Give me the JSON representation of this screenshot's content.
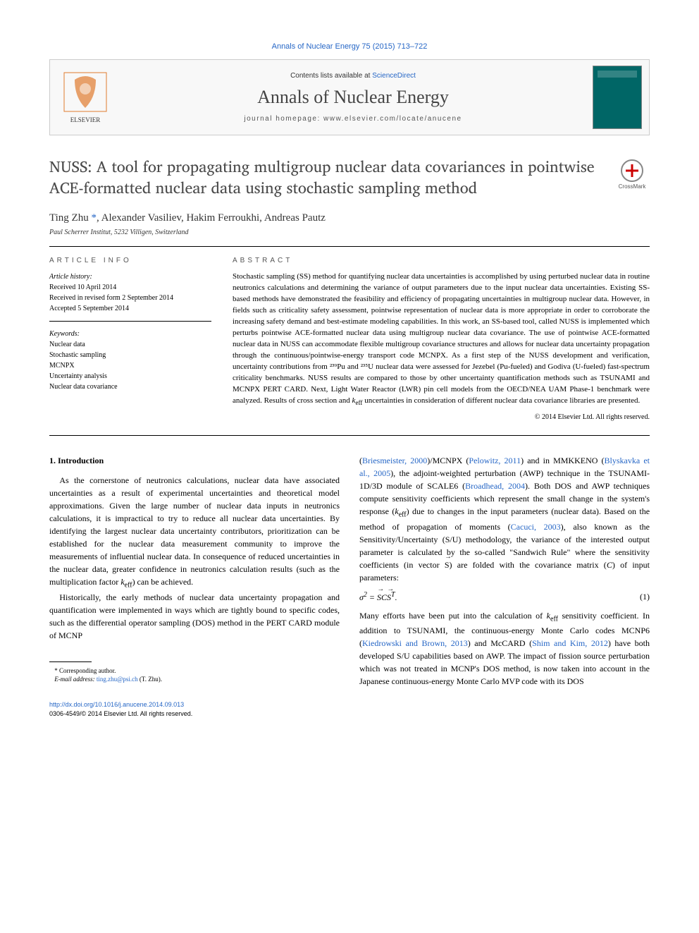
{
  "citation": "Annals of Nuclear Energy 75 (2015) 713–722",
  "header": {
    "contents_prefix": "Contents lists available at ",
    "contents_link": "ScienceDirect",
    "journal_name": "Annals of Nuclear Energy",
    "homepage_label": "journal homepage: ",
    "homepage_url": "www.elsevier.com/locate/anucene"
  },
  "article": {
    "title": "NUSS: A tool for propagating multigroup nuclear data covariances in pointwise ACE-formatted nuclear data using stochastic sampling method",
    "crossmark_label": "CrossMark",
    "authors_html": "Ting Zhu <span class='corr'>*</span>, Alexander Vasiliev, Hakim Ferroukhi, Andreas Pautz",
    "affiliation": "Paul Scherrer Institut, 5232 Villigen, Switzerland"
  },
  "info": {
    "heading": "article info",
    "history_label": "Article history:",
    "received": "Received 10 April 2014",
    "revised": "Received in revised form 2 September 2014",
    "accepted": "Accepted 5 September 2014",
    "keywords_label": "Keywords:",
    "keywords": [
      "Nuclear data",
      "Stochastic sampling",
      "MCNPX",
      "Uncertainty analysis",
      "Nuclear data covariance"
    ]
  },
  "abstract": {
    "heading": "abstract",
    "text": "Stochastic sampling (SS) method for quantifying nuclear data uncertainties is accomplished by using perturbed nuclear data in routine neutronics calculations and determining the variance of output parameters due to the input nuclear data uncertainties. Existing SS-based methods have demonstrated the feasibility and efficiency of propagating uncertainties in multigroup nuclear data. However, in fields such as criticality safety assessment, pointwise representation of nuclear data is more appropriate in order to corroborate the increasing safety demand and best-estimate modeling capabilities. In this work, an SS-based tool, called NUSS is implemented which perturbs pointwise ACE-formatted nuclear data using multigroup nuclear data covariance. The use of pointwise ACE-formatted nuclear data in NUSS can accommodate flexible multigroup covariance structures and allows for nuclear data uncertainty propagation through the continuous/pointwise-energy transport code MCNPX. As a first step of the NUSS development and verification, uncertainty contributions from ²³⁹Pu and ²³⁵U nuclear data were assessed for Jezebel (Pu-fueled) and Godiva (U-fueled) fast-spectrum criticality benchmarks. NUSS results are compared to those by other uncertainty quantification methods such as TSUNAMI and MCNPX PERT CARD. Next, Light Water Reactor (LWR) pin cell models from the OECD/NEA UAM Phase-1 benchmark were analyzed. Results of cross section and keff uncertainties in consideration of different nuclear data covariance libraries are presented.",
    "copyright": "© 2014 Elsevier Ltd. All rights reserved."
  },
  "body": {
    "heading": "1. Introduction",
    "p1": "As the cornerstone of neutronics calculations, nuclear data have associated uncertainties as a result of experimental uncertainties and theoretical model approximations. Given the large number of nuclear data inputs in neutronics calculations, it is impractical to try to reduce all nuclear data uncertainties. By identifying the largest nuclear data uncertainty contributors, prioritization can be established for the nuclear data measurement community to improve the measurements of influential nuclear data. In consequence of reduced uncertainties in the nuclear data, greater confidence in neutronics calculation results (such as the multiplication factor keff) can be achieved.",
    "p2": "Historically, the early methods of nuclear data uncertainty propagation and quantification were implemented in ways which are tightly bound to specific codes, such as the differential operator sampling (DOS) method in the PERT CARD module of MCNP",
    "p3_prefix": "(",
    "ref1": "Briesmeister, 2000",
    "p3_a": ")/MCNPX (",
    "ref2": "Pelowitz, 2011",
    "p3_b": ") and in MMKKENO (",
    "ref3": "Blyskavka et al., 2005",
    "p3_c": "), the adjoint-weighted perturbation (AWP) technique in the TSUNAMI-1D/3D module of SCALE6 (",
    "ref4": "Broadhead, 2004",
    "p3_d": "). Both DOS and AWP techniques compute sensitivity coefficients which represent the small change in the system's response (keff) due to changes in the input parameters (nuclear data). Based on the method of propagation of moments (",
    "ref5": "Cacuci, 2003",
    "p3_e": "), also known as the Sensitivity/Uncertainty (S/U) methodology, the variance of the interested output parameter is calculated by the so-called \"Sandwich Rule\" where the sensitivity coefficients (in vector S⃗) are folded with the covariance matrix (C) of input parameters:",
    "eq1": "σ² = S⃗CS⃗ᵀ.",
    "eq1_num": "(1)",
    "p4_a": "Many efforts have been put into the calculation of keff sensitivity coefficient. In addition to TSUNAMI, the continuous-energy Monte Carlo codes MCNP6 (",
    "ref6": "Kiedrowski and Brown, 2013",
    "p4_b": ") and McCARD (",
    "ref7": "Shim and Kim, 2012",
    "p4_c": ") have both developed S/U capabilities based on AWP. The impact of fission source perturbation which was not treated in MCNP's DOS method, is now taken into account in the Japanese continuous-energy Monte Carlo MVP code with its DOS"
  },
  "footnotes": {
    "corr": "* Corresponding author.",
    "email_label": "E-mail address: ",
    "email": "ting.zhu@psi.ch",
    "email_suffix": " (T. Zhu)."
  },
  "bottom": {
    "doi": "http://dx.doi.org/10.1016/j.anucene.2014.09.013",
    "issn_copyright": "0306-4549/© 2014 Elsevier Ltd. All rights reserved."
  },
  "colors": {
    "link": "#2566c6",
    "text": "#000000",
    "title_grey": "#4a4a4a",
    "cover_bg": "#006666"
  }
}
